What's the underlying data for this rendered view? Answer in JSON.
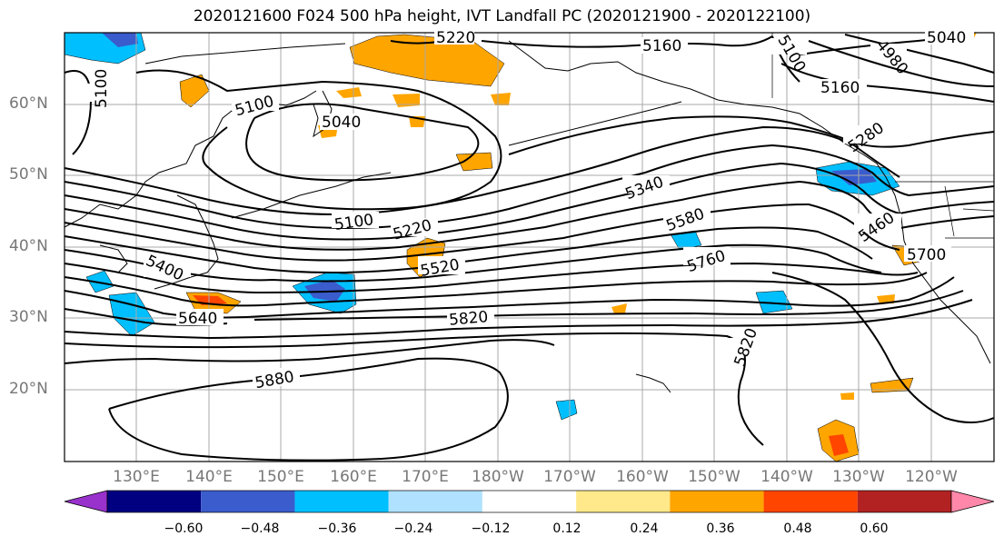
{
  "title": "2020121600 F024 500 hPa height, IVT Landfall PC (2020121900 - 2020122100)",
  "map": {
    "lat_labels": [
      "60°N",
      "50°N",
      "40°N",
      "30°N",
      "20°N"
    ],
    "lon_labels": [
      "130°E",
      "140°E",
      "150°E",
      "160°E",
      "170°E",
      "180°W",
      "170°W",
      "160°W",
      "150°W",
      "140°W",
      "130°W",
      "120°W"
    ],
    "contour_labels": [
      "5220",
      "5160",
      "5100",
      "4980",
      "5040",
      "5100",
      "5160",
      "5100",
      "5040",
      "5280",
      "5340",
      "5100",
      "5220",
      "5580",
      "5460",
      "5400",
      "5520",
      "5760",
      "5700",
      "5640",
      "5820",
      "5820",
      "5880"
    ]
  },
  "colorbar": {
    "colors": [
      "#9932cc",
      "#000080",
      "#3a5ccc",
      "#00bfff",
      "#b0e2ff",
      "#ffffff",
      "#ffe98a",
      "#ffa500",
      "#ff4500",
      "#b22222",
      "#ff88aa"
    ],
    "tick_labels": [
      "−0.60",
      "−0.48",
      "−0.36",
      "−0.24",
      "−0.12",
      "0.12",
      "0.24",
      "0.36",
      "0.48",
      "0.60"
    ]
  }
}
